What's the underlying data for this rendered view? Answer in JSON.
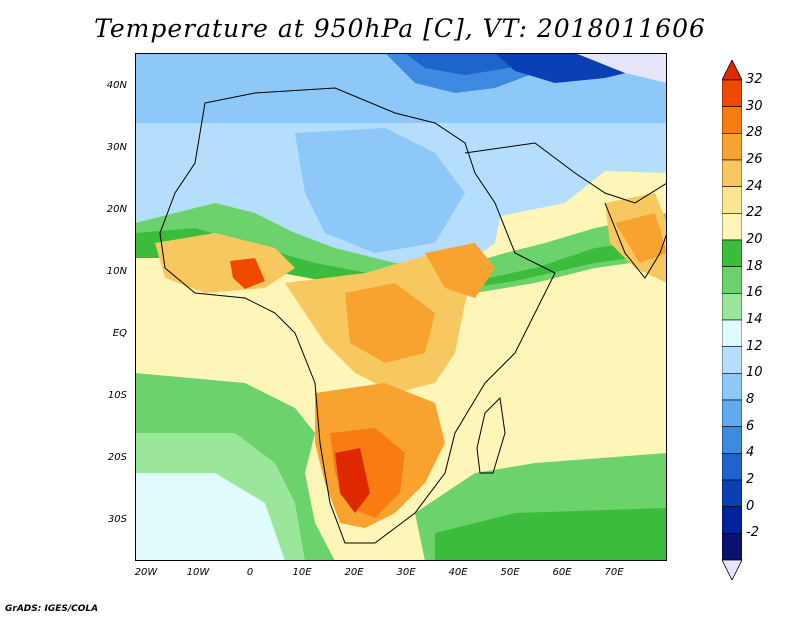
{
  "title": "Temperature at 950hPa [C], VT: 2018011606",
  "credit": "GrADS: IGES/COLA",
  "map": {
    "lon_range": [
      -22,
      80
    ],
    "lat_range": [
      -37,
      45
    ],
    "lat_labels": [
      "40N",
      "30N",
      "20N",
      "10N",
      "EQ",
      "10S",
      "20S",
      "30S"
    ],
    "lat_values": [
      40,
      30,
      20,
      10,
      0,
      -10,
      -20,
      -30
    ],
    "lon_labels": [
      "20W",
      "10W",
      "0",
      "10E",
      "20E",
      "30E",
      "40E",
      "50E",
      "60E",
      "70E"
    ],
    "lon_values": [
      -20,
      -10,
      0,
      10,
      20,
      30,
      40,
      50,
      60,
      70
    ]
  },
  "colorbar": {
    "labels": [
      "32",
      "30",
      "28",
      "26",
      "24",
      "22",
      "20",
      "18",
      "16",
      "14",
      "12",
      "10",
      "8",
      "6",
      "4",
      "2",
      "0",
      "-2"
    ],
    "colors": [
      "#e02800",
      "#f04a00",
      "#f87c10",
      "#f8a230",
      "#f8c860",
      "#fae690",
      "#fdf6b8",
      "#3cbc3c",
      "#6cd26c",
      "#9ae69a",
      "#e0fbfc",
      "#b4defc",
      "#8ec8f8",
      "#62aaee",
      "#3e8ae0",
      "#1e64cc",
      "#0a40b4",
      "#00229a",
      "#0a1070",
      "#e6e6fa"
    ]
  }
}
